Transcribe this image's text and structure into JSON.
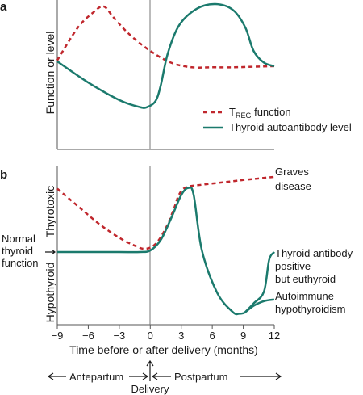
{
  "chart_data": [
    {
      "panel": "a",
      "type": "line",
      "ylabel": "Function or level",
      "xlim": [
        -9,
        12
      ],
      "series": [
        {
          "name": "TREG function",
          "name_main": "T",
          "name_sub": "REG",
          "name_rest": " function",
          "style": "dashed",
          "color": "#c0272d",
          "x": [
            -9,
            -7,
            -5.5,
            -4.5,
            -3.5,
            -2,
            0,
            2,
            4,
            6,
            8,
            10,
            12
          ],
          "y": [
            0.52,
            0.8,
            0.93,
            0.98,
            0.88,
            0.74,
            0.6,
            0.5,
            0.46,
            0.46,
            0.46,
            0.465,
            0.47
          ]
        },
        {
          "name": "Thyroid autoantibody level",
          "style": "solid",
          "color": "#1b7a6d",
          "x": [
            -9,
            -6,
            -3,
            -1,
            -0.3,
            0.5,
            1,
            1.7,
            2.8,
            4.5,
            6.3,
            8,
            9.2,
            10,
            11,
            12
          ],
          "y": [
            0.51,
            0.33,
            0.18,
            0.12,
            0.12,
            0.17,
            0.3,
            0.58,
            0.82,
            0.96,
            1.0,
            0.95,
            0.8,
            0.6,
            0.5,
            0.47
          ]
        }
      ]
    },
    {
      "panel": "b",
      "type": "line",
      "xlabel": "Time before or after delivery (months)",
      "ylabel_top": "Thyrotoxic",
      "ylabel_bottom": "Hypothyroid",
      "xlim": [
        -9,
        12
      ],
      "x_ticks": [
        "−9",
        "−6",
        "−3",
        "0",
        "3",
        "6",
        "9",
        "12"
      ],
      "x_tick_values": [
        -9,
        -6,
        -3,
        0,
        3,
        6,
        9,
        12
      ],
      "normal_label": [
        "Normal",
        "thyroid",
        "function"
      ],
      "series": [
        {
          "name": "TREG function",
          "style": "dashed",
          "color": "#c0272d",
          "x": [
            -9,
            -7,
            -5,
            -3,
            -1.5,
            -0.5,
            0.5,
            1.5,
            2.3,
            2.8,
            3.5,
            5,
            7,
            9,
            12
          ],
          "y": [
            0.8,
            0.58,
            0.36,
            0.18,
            0.08,
            0.04,
            0.1,
            0.3,
            0.55,
            0.73,
            0.82,
            0.85,
            0.88,
            0.91,
            0.95
          ],
          "end_label": [
            "Graves",
            "disease"
          ]
        },
        {
          "name": "Thyroid autoantibody level",
          "style": "solid",
          "color": "#1b7a6d",
          "x": [
            -9,
            -6,
            -3,
            -1,
            0,
            1,
            2,
            3,
            3.7,
            4.2,
            5,
            6.5,
            8,
            8.6,
            9.1
          ],
          "y": [
            0,
            0,
            0,
            0,
            0.02,
            0.15,
            0.42,
            0.72,
            0.81,
            0.72,
            0.02,
            -0.52,
            -0.76,
            -0.78,
            -0.77
          ],
          "branches": [
            {
              "label": [
                "Thyroid antibody",
                "positive",
                "but euthyroid"
              ],
              "x": [
                9.1,
                10,
                11,
                11.5,
                12
              ],
              "y": [
                -0.77,
                -0.65,
                -0.5,
                -0.1,
                0
              ]
            },
            {
              "label": [
                "Autoimmune",
                "hypothyroidism"
              ],
              "x": [
                9.1,
                10,
                11,
                12
              ],
              "y": [
                -0.77,
                -0.68,
                -0.62,
                -0.6
              ]
            }
          ]
        }
      ]
    }
  ],
  "bottom": {
    "antepartum": "Antepartum",
    "postpartum": "Postpartum",
    "delivery": "Delivery"
  }
}
